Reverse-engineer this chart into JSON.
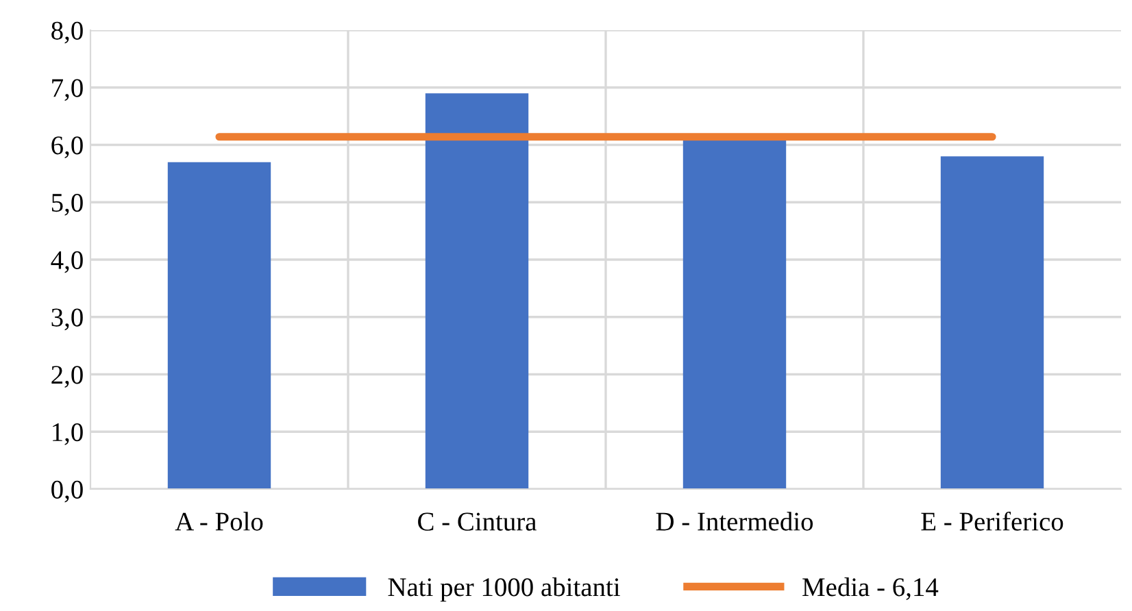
{
  "chart_data": {
    "type": "bar",
    "categories": [
      "A - Polo",
      "C - Cintura",
      "D - Intermedio",
      "E - Periferico"
    ],
    "series": [
      {
        "name": "Nati per 1000 abitanti",
        "color": "#4472c4",
        "values": [
          5.7,
          6.9,
          6.1,
          5.8
        ]
      },
      {
        "name": "Media - 6,14",
        "type": "line",
        "color": "#ed7d31",
        "values": [
          6.14,
          6.14,
          6.14,
          6.14
        ],
        "marker": "none",
        "line_style": "solid"
      }
    ],
    "ylim": [
      0,
      8
    ],
    "yticks": [
      {
        "value": 0,
        "label": "0,0"
      },
      {
        "value": 1,
        "label": "1,0"
      },
      {
        "value": 2,
        "label": "2,0"
      },
      {
        "value": 3,
        "label": "3,0"
      },
      {
        "value": 4,
        "label": "4,0"
      },
      {
        "value": 5,
        "label": "5,0"
      },
      {
        "value": 6,
        "label": "6,0"
      },
      {
        "value": 7,
        "label": "7,0"
      },
      {
        "value": 8,
        "label": "8,0"
      }
    ],
    "grid": true,
    "legend": "bottom"
  }
}
